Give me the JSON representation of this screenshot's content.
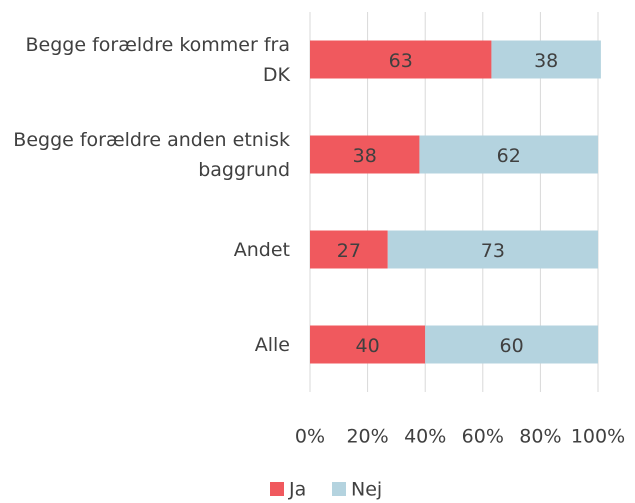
{
  "chart_data": {
    "type": "stacked_barh",
    "categories": [
      "Begge forældre kommer fra DK",
      "Begge forældre anden etnisk baggrund",
      "Andet",
      "Alle"
    ],
    "series": [
      {
        "name": "Ja",
        "color": "#f0595e",
        "values": [
          63,
          38,
          27,
          40
        ]
      },
      {
        "name": "Nej",
        "color": "#b4d3df",
        "values": [
          38,
          62,
          73,
          60
        ]
      }
    ],
    "xlim": [
      0,
      100
    ],
    "xticks": [
      {
        "value": 0,
        "label": "0%"
      },
      {
        "value": 20,
        "label": "20%"
      },
      {
        "value": 40,
        "label": "40%"
      },
      {
        "value": 60,
        "label": "60%"
      },
      {
        "value": 80,
        "label": "80%"
      },
      {
        "value": 100,
        "label": "100%"
      }
    ],
    "grid": true,
    "legend": "bottom"
  }
}
